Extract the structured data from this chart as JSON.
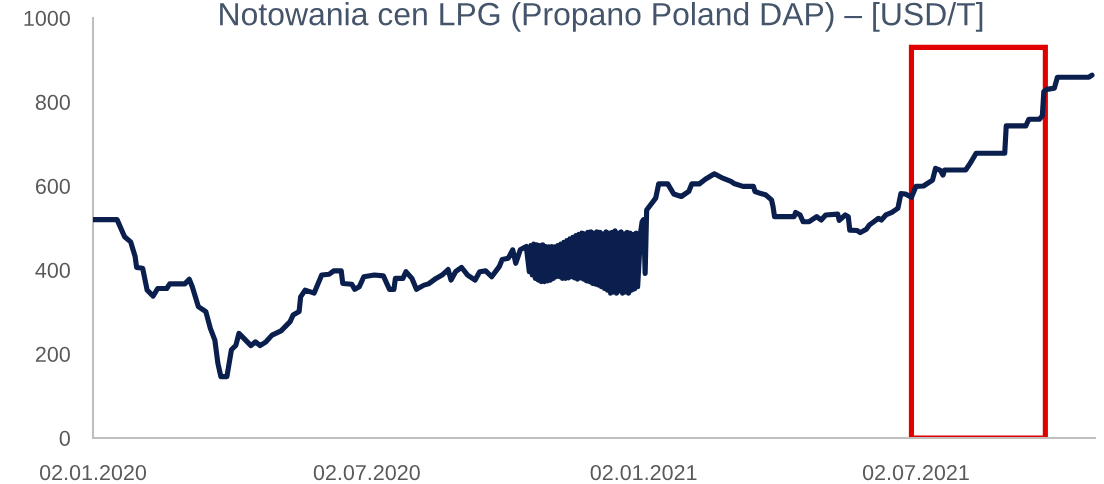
{
  "chart_data": {
    "type": "line",
    "title": "Notowania cen LPG (Propano Poland DAP) – [USD/T]",
    "x": [
      "2020-01-02",
      "2020-01-18",
      "2020-01-23",
      "2020-01-27",
      "2020-01-30",
      "2020-01-31",
      "2020-02-04",
      "2020-02-07",
      "2020-02-11",
      "2020-02-14",
      "2020-02-20",
      "2020-02-22",
      "2020-03-03",
      "2020-03-06",
      "2020-03-08",
      "2020-03-12",
      "2020-03-17",
      "2020-03-20",
      "2020-03-23",
      "2020-03-25",
      "2020-03-27",
      "2020-03-31",
      "2020-04-03",
      "2020-04-06",
      "2020-04-08",
      "2020-04-16",
      "2020-04-19",
      "2020-04-22",
      "2020-04-26",
      "2020-04-30",
      "2020-05-06",
      "2020-05-12",
      "2020-05-14",
      "2020-05-18",
      "2020-05-19",
      "2020-05-22",
      "2020-05-28",
      "2020-06-02",
      "2020-06-07",
      "2020-06-10",
      "2020-06-15",
      "2020-06-16",
      "2020-06-22",
      "2020-06-24",
      "2020-06-27",
      "2020-06-30",
      "2020-07-07",
      "2020-07-13",
      "2020-07-17",
      "2020-07-20",
      "2020-07-21",
      "2020-07-26",
      "2020-07-28",
      "2020-08-01",
      "2020-08-04",
      "2020-08-09",
      "2020-08-12",
      "2020-08-17",
      "2020-08-21",
      "2020-08-25",
      "2020-08-27",
      "2020-08-30",
      "2020-09-03",
      "2020-09-07",
      "2020-09-12",
      "2020-09-15",
      "2020-09-19",
      "2020-09-23",
      "2020-09-28",
      "2020-09-30",
      "2020-10-04",
      "2020-10-07",
      "2020-10-09",
      "2020-10-12",
      "2020-10-16",
      "2020-10-18",
      "2020-10-19",
      "2020-10-20",
      "2020-10-21",
      "2020-10-22",
      "2020-10-23",
      "2020-10-24",
      "2020-10-25",
      "2020-10-26",
      "2020-10-27",
      "2020-10-28",
      "2020-10-29",
      "2020-10-30",
      "2020-10-31",
      "2020-11-01",
      "2020-11-02",
      "2020-11-03",
      "2020-11-04",
      "2020-11-05",
      "2020-11-06",
      "2020-11-07",
      "2020-11-08",
      "2020-11-09",
      "2020-11-10",
      "2020-11-11",
      "2020-11-12",
      "2020-11-13",
      "2020-11-14",
      "2020-11-15",
      "2020-11-16",
      "2020-11-17",
      "2020-11-18",
      "2020-11-19",
      "2020-11-20",
      "2020-11-21",
      "2020-11-22",
      "2020-11-23",
      "2020-11-24",
      "2020-11-25",
      "2020-11-26",
      "2020-11-27",
      "2020-11-28",
      "2020-11-29",
      "2020-11-30",
      "2020-12-01",
      "2020-12-02",
      "2020-12-03",
      "2020-12-04",
      "2020-12-05",
      "2020-12-06",
      "2020-12-07",
      "2020-12-08",
      "2020-12-09",
      "2020-12-10",
      "2020-12-11",
      "2020-12-12",
      "2020-12-13",
      "2020-12-14",
      "2020-12-15",
      "2020-12-16",
      "2020-12-17",
      "2020-12-18",
      "2020-12-19",
      "2020-12-20",
      "2020-12-21",
      "2020-12-22",
      "2020-12-23",
      "2020-12-24",
      "2020-12-25",
      "2020-12-26",
      "2020-12-27",
      "2020-12-28",
      "2020-12-29",
      "2020-12-31",
      "2021-01-01",
      "2021-01-02",
      "2021-01-03",
      "2021-01-04",
      "2021-01-10",
      "2021-01-12",
      "2021-01-18",
      "2021-01-22",
      "2021-01-27",
      "2021-02-01",
      "2021-02-03",
      "2021-02-08",
      "2021-02-12",
      "2021-02-18",
      "2021-02-24",
      "2021-03-01",
      "2021-03-03",
      "2021-03-09",
      "2021-03-16",
      "2021-03-17",
      "2021-03-21",
      "2021-03-24",
      "2021-03-28",
      "2021-03-29",
      "2021-03-30",
      "2021-04-12",
      "2021-04-13",
      "2021-04-16",
      "2021-04-18",
      "2021-04-22",
      "2021-04-27",
      "2021-04-30",
      "2021-05-03",
      "2021-05-11",
      "2021-05-12",
      "2021-05-16",
      "2021-05-18",
      "2021-05-19",
      "2021-05-24",
      "2021-05-26",
      "2021-05-30",
      "2021-06-01",
      "2021-06-04",
      "2021-06-07",
      "2021-06-09",
      "2021-06-12",
      "2021-06-16",
      "2021-06-20",
      "2021-06-22",
      "2021-06-25",
      "2021-06-29",
      "2021-07-02",
      "2021-07-07",
      "2021-07-13",
      "2021-07-15",
      "2021-07-18",
      "2021-07-20",
      "2021-07-21",
      "2021-08-04",
      "2021-08-07",
      "2021-08-11",
      "2021-08-30",
      "2021-08-31",
      "2021-09-13",
      "2021-09-15",
      "2021-09-22",
      "2021-09-24",
      "2021-09-25",
      "2021-09-27",
      "2021-10-02",
      "2021-10-04",
      "2021-10-25",
      "2021-10-27"
    ],
    "series": [
      {
        "color": "#0a1f4d",
        "values": [
          520,
          520,
          479,
          467,
          432,
          406,
          404,
          352,
          338,
          356,
          356,
          367,
          367,
          378,
          360,
          313,
          301,
          261,
          233,
          178,
          146,
          146,
          210,
          221,
          249,
          220,
          229,
          220,
          229,
          245,
          255,
          277,
          293,
          301,
          336,
          352,
          345,
          388,
          390,
          398,
          398,
          368,
          366,
          354,
          360,
          384,
          388,
          386,
          354,
          354,
          380,
          380,
          396,
          380,
          354,
          364,
          367,
          380,
          388,
          401,
          376,
          396,
          406,
          388,
          376,
          396,
          398,
          384,
          408,
          425,
          428,
          448,
          416,
          448,
          456,
          396,
          458,
          388,
          462,
          380,
          460,
          376,
          458,
          372,
          460,
          372,
          456,
          374,
          455,
          376,
          456,
          380,
          455,
          384,
          458,
          384,
          462,
          380,
          466,
          380,
          470,
          381,
          474,
          384,
          478,
          381,
          482,
          378,
          485,
          381,
          488,
          378,
          486,
          374,
          490,
          372,
          491,
          368,
          488,
          366,
          491,
          364,
          490,
          360,
          486,
          356,
          491,
          352,
          488,
          345,
          490,
          348,
          493,
          345,
          488,
          350,
          491,
          345,
          486,
          348,
          490,
          345,
          488,
          352,
          485,
          355,
          488,
          360,
          490,
          515,
          520,
          392,
          543,
          571,
          605,
          605,
          581,
          575,
          587,
          605,
          605,
          616,
          629,
          618,
          611,
          606,
          599,
          599,
          587,
          582,
          579,
          567,
          551,
          527,
          527,
          537,
          531,
          515,
          515,
          527,
          519,
          531,
          533,
          518,
          531,
          527,
          495,
          494,
          489,
          497,
          507,
          515,
          523,
          519,
          531,
          537,
          547,
          582,
          581,
          573,
          599,
          600,
          614,
          642,
          638,
          626,
          638,
          638,
          654,
          678,
          678,
          743,
          743,
          759,
          759,
          767,
          825,
          830,
          833,
          859,
          859,
          864
        ]
      }
    ],
    "xlim": [
      "2020-01-02",
      "2021-10-29"
    ],
    "xticks": [
      {
        "value": "2020-01-02",
        "label": "02.01.2020"
      },
      {
        "value": "2020-07-02",
        "label": "02.07.2020"
      },
      {
        "value": "2021-01-02",
        "label": "02.01.2021"
      },
      {
        "value": "2021-07-02",
        "label": "02.07.2021"
      }
    ],
    "ylim": [
      0,
      1000
    ],
    "yticks": [
      0,
      200,
      400,
      600,
      800,
      1000
    ],
    "bands": [
      {
        "axis": "x",
        "from": "2021-06-29",
        "to": "2021-09-26",
        "color": "#e00000"
      }
    ],
    "marker": "none",
    "line_style": "solid"
  }
}
